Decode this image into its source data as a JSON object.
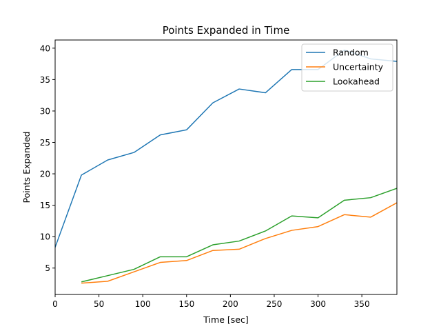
{
  "chart_data": {
    "type": "line",
    "title": "Points Expanded in Time",
    "xlabel": "Time [sec]",
    "ylabel": "Points Expanded",
    "xlim": [
      0,
      390
    ],
    "ylim": [
      0.8,
      41.3
    ],
    "xticks": [
      0,
      50,
      100,
      150,
      200,
      250,
      300,
      350
    ],
    "yticks": [
      5,
      10,
      15,
      20,
      25,
      30,
      35,
      40
    ],
    "grid": false,
    "legend_position": "top-right",
    "colors": {
      "Random": "#1f77b4",
      "Uncertainty": "#ff7f0e",
      "Lookahead": "#2ca02c"
    },
    "series": [
      {
        "name": "Random",
        "x": [
          0,
          30,
          60,
          90,
          120,
          150,
          180,
          210,
          240,
          270,
          300,
          330,
          360,
          390
        ],
        "y": [
          8.3,
          19.8,
          22.2,
          23.4,
          26.2,
          27.0,
          31.3,
          33.5,
          32.9,
          36.6,
          36.6,
          39.7,
          38.3,
          37.9
        ]
      },
      {
        "name": "Uncertainty",
        "x": [
          30,
          60,
          90,
          120,
          150,
          180,
          210,
          240,
          270,
          300,
          330,
          360,
          390
        ],
        "y": [
          2.6,
          2.9,
          4.4,
          5.9,
          6.2,
          7.8,
          8.0,
          9.7,
          11.0,
          11.6,
          13.5,
          13.1,
          15.4
        ]
      },
      {
        "name": "Lookahead",
        "x": [
          30,
          60,
          90,
          120,
          150,
          180,
          210,
          240,
          270,
          300,
          330,
          360,
          390
        ],
        "y": [
          2.8,
          3.8,
          4.8,
          6.8,
          6.8,
          8.7,
          9.3,
          10.9,
          13.3,
          13.0,
          15.8,
          16.2,
          17.7
        ]
      }
    ]
  }
}
